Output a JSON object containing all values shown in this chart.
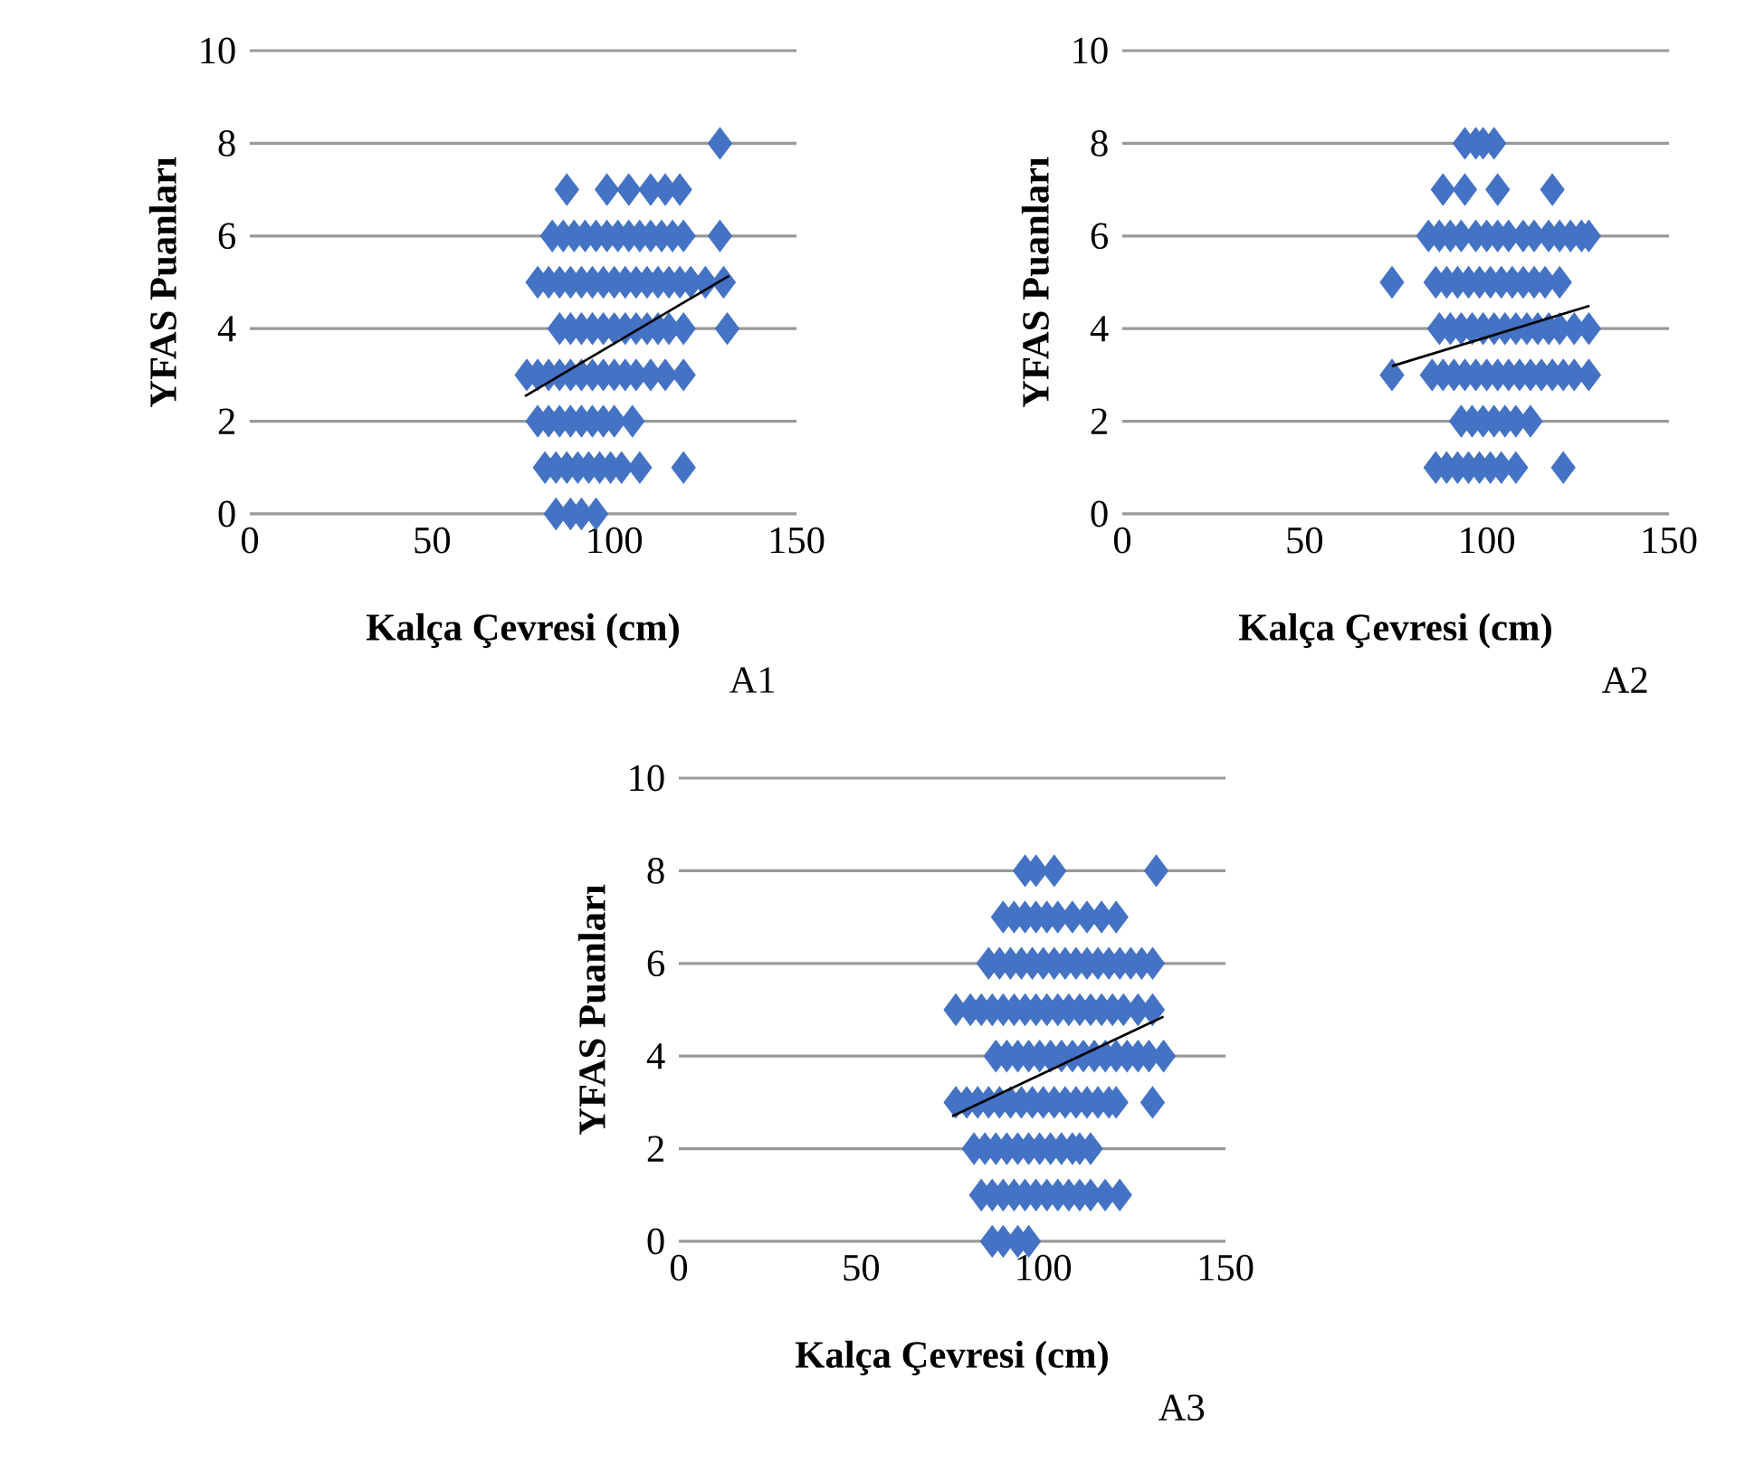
{
  "chart_data": [
    {
      "type": "scatter",
      "xlabel": "Kalça Çevresi (cm)",
      "ylabel": "YFAS Puanları",
      "annotations": [
        "A1"
      ],
      "xlim": [
        0,
        150
      ],
      "xticks": [
        0,
        50,
        100,
        150
      ],
      "ylim": [
        0,
        10
      ],
      "yticks": [
        0,
        2,
        4,
        6,
        8,
        10
      ],
      "grid": "y",
      "marker": "diamond",
      "series": [
        {
          "color": "#4472c4",
          "x": [
            129,
            87,
            98,
            104,
            110,
            114,
            118,
            83,
            86,
            89,
            92,
            95,
            98,
            101,
            104,
            107,
            110,
            113,
            116,
            119,
            129,
            79,
            82,
            85,
            88,
            91,
            94,
            97,
            100,
            103,
            106,
            109,
            112,
            115,
            118,
            121,
            125,
            130,
            85,
            88,
            91,
            94,
            97,
            100,
            103,
            106,
            109,
            112,
            115,
            119,
            131,
            76,
            79,
            82,
            85,
            88,
            91,
            94,
            97,
            100,
            103,
            106,
            110,
            114,
            119,
            79,
            82,
            85,
            88,
            91,
            94,
            97,
            100,
            105,
            81,
            84,
            87,
            90,
            93,
            96,
            99,
            102,
            107,
            119,
            84,
            88,
            91,
            95
          ],
          "values": [
            8,
            7,
            7,
            7,
            7,
            7,
            7,
            6,
            6,
            6,
            6,
            6,
            6,
            6,
            6,
            6,
            6,
            6,
            6,
            6,
            6,
            5,
            5,
            5,
            5,
            5,
            5,
            5,
            5,
            5,
            5,
            5,
            5,
            5,
            5,
            5,
            5,
            5,
            4,
            4,
            4,
            4,
            4,
            4,
            4,
            4,
            4,
            4,
            4,
            4,
            4,
            3,
            3,
            3,
            3,
            3,
            3,
            3,
            3,
            3,
            3,
            3,
            3,
            3,
            3,
            2,
            2,
            2,
            2,
            2,
            2,
            2,
            2,
            2,
            1,
            1,
            1,
            1,
            1,
            1,
            1,
            1,
            1,
            1,
            0,
            0,
            0,
            0
          ]
        },
        {
          "type": "line",
          "marker": "none",
          "color": "#000000",
          "x": [
            75.5,
            131.5
          ],
          "values": [
            2.54,
            5.14
          ]
        }
      ]
    },
    {
      "type": "scatter",
      "xlabel": "Kalça Çevresi (cm)",
      "ylabel": "YFAS Puanları",
      "annotations": [
        "A2"
      ],
      "xlim": [
        0,
        150
      ],
      "xticks": [
        0,
        50,
        100,
        150
      ],
      "ylim": [
        0,
        10
      ],
      "yticks": [
        0,
        2,
        4,
        6,
        8,
        10
      ],
      "grid": "y",
      "marker": "diamond",
      "series": [
        {
          "color": "#4472c4",
          "x": [
            94,
            97,
            99,
            102,
            88,
            94,
            103,
            118,
            84,
            87,
            90,
            93,
            97,
            100,
            103,
            106,
            110,
            113,
            117,
            120,
            123,
            126,
            128,
            74,
            86,
            89,
            92,
            95,
            98,
            101,
            104,
            107,
            110,
            113,
            116,
            120,
            87,
            90,
            93,
            96,
            99,
            102,
            105,
            108,
            111,
            114,
            117,
            120,
            124,
            128,
            74,
            85,
            88,
            91,
            94,
            97,
            100,
            103,
            106,
            109,
            112,
            115,
            118,
            121,
            124,
            128,
            93,
            96,
            99,
            102,
            105,
            108,
            112,
            86,
            89,
            92,
            95,
            98,
            101,
            104,
            108,
            121
          ],
          "values": [
            8,
            8,
            8,
            8,
            7,
            7,
            7,
            7,
            6,
            6,
            6,
            6,
            6,
            6,
            6,
            6,
            6,
            6,
            6,
            6,
            6,
            6,
            6,
            5,
            5,
            5,
            5,
            5,
            5,
            5,
            5,
            5,
            5,
            5,
            5,
            5,
            4,
            4,
            4,
            4,
            4,
            4,
            4,
            4,
            4,
            4,
            4,
            4,
            4,
            4,
            3,
            3,
            3,
            3,
            3,
            3,
            3,
            3,
            3,
            3,
            3,
            3,
            3,
            3,
            3,
            3,
            2,
            2,
            2,
            2,
            2,
            2,
            2,
            1,
            1,
            1,
            1,
            1,
            1,
            1,
            1,
            1
          ]
        },
        {
          "type": "line",
          "marker": "none",
          "color": "#000000",
          "x": [
            74,
            128.2
          ],
          "values": [
            3.19,
            4.49
          ]
        }
      ]
    },
    {
      "type": "scatter",
      "xlabel": "Kalça Çevresi (cm)",
      "ylabel": "YFAS Puanları",
      "annotations": [
        "A3"
      ],
      "xlim": [
        0,
        150
      ],
      "xticks": [
        0,
        50,
        100,
        150
      ],
      "ylim": [
        0,
        10
      ],
      "yticks": [
        0,
        2,
        4,
        6,
        8,
        10
      ],
      "grid": "y",
      "marker": "diamond",
      "series": [
        {
          "color": "#4472c4",
          "x": [
            95,
            98,
            103,
            131,
            89,
            92,
            95,
            98,
            101,
            104,
            108,
            112,
            116,
            120,
            85,
            88,
            91,
            94,
            97,
            100,
            103,
            106,
            109,
            112,
            115,
            118,
            121,
            124,
            127,
            130,
            76,
            80,
            83,
            86,
            89,
            92,
            95,
            98,
            101,
            104,
            107,
            110,
            113,
            116,
            119,
            122,
            126,
            130,
            87,
            90,
            93,
            96,
            99,
            102,
            105,
            108,
            111,
            114,
            117,
            120,
            123,
            126,
            129,
            133,
            76,
            79,
            82,
            85,
            88,
            91,
            94,
            97,
            100,
            103,
            106,
            109,
            112,
            115,
            118,
            120,
            130,
            81,
            84,
            87,
            90,
            93,
            96,
            99,
            102,
            105,
            108,
            110,
            113,
            83,
            86,
            89,
            92,
            95,
            98,
            101,
            104,
            107,
            110,
            113,
            117,
            121,
            86,
            89,
            93,
            96
          ],
          "values": [
            8,
            8,
            8,
            8,
            7,
            7,
            7,
            7,
            7,
            7,
            7,
            7,
            7,
            7,
            6,
            6,
            6,
            6,
            6,
            6,
            6,
            6,
            6,
            6,
            6,
            6,
            6,
            6,
            6,
            6,
            5,
            5,
            5,
            5,
            5,
            5,
            5,
            5,
            5,
            5,
            5,
            5,
            5,
            5,
            5,
            5,
            5,
            5,
            4,
            4,
            4,
            4,
            4,
            4,
            4,
            4,
            4,
            4,
            4,
            4,
            4,
            4,
            4,
            4,
            3,
            3,
            3,
            3,
            3,
            3,
            3,
            3,
            3,
            3,
            3,
            3,
            3,
            3,
            3,
            3,
            3,
            2,
            2,
            2,
            2,
            2,
            2,
            2,
            2,
            2,
            2,
            2,
            2,
            1,
            1,
            1,
            1,
            1,
            1,
            1,
            1,
            1,
            1,
            1,
            1,
            1,
            0,
            0,
            0,
            0
          ]
        },
        {
          "type": "line",
          "marker": "none",
          "color": "#000000",
          "x": [
            75,
            133
          ],
          "values": [
            2.7,
            4.85
          ]
        }
      ]
    }
  ]
}
